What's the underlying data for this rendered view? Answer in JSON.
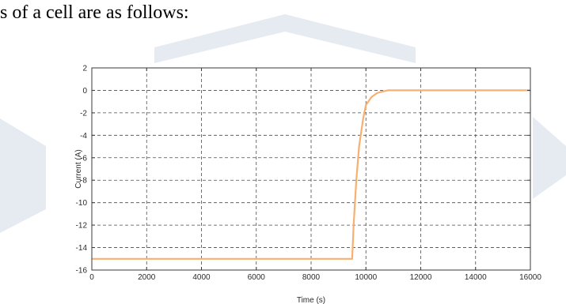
{
  "intro_text": "s of a cell are as follows:",
  "colors": {
    "series": "#f7b070",
    "grid": "#4a4a4a",
    "axis": "#3a3a3a",
    "watermark": "#e6ebf2"
  },
  "chart_data": {
    "type": "line",
    "title": "",
    "xlabel": "Time (s)",
    "ylabel": "Current (A)",
    "xlim": [
      0,
      16000
    ],
    "ylim": [
      -16,
      2
    ],
    "xticks": [
      0,
      2000,
      4000,
      6000,
      8000,
      10000,
      12000,
      14000,
      16000
    ],
    "yticks": [
      2,
      0,
      -2,
      -4,
      -6,
      -8,
      -10,
      -12,
      -14,
      -16
    ],
    "grid": true,
    "legend": "none",
    "series": [
      {
        "x": [
          0,
          9500,
          9550,
          9650,
          9750,
          9900,
          10000,
          10200,
          10400,
          10600,
          10800,
          11000,
          16000
        ],
        "y": [
          -15,
          -15,
          -12,
          -8,
          -5,
          -2.5,
          -1.3,
          -0.6,
          -0.25,
          -0.1,
          0,
          0,
          0
        ]
      }
    ]
  }
}
